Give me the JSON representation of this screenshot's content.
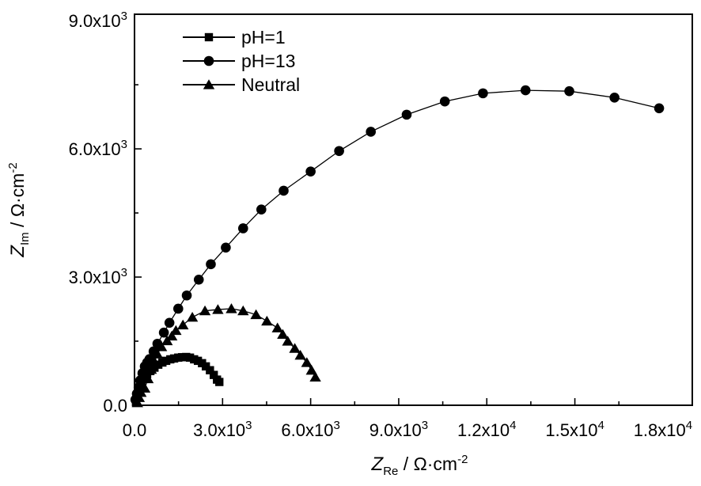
{
  "chart_data": {
    "type": "scatter",
    "title": "",
    "background": "#ffffff",
    "foreground": "#000000",
    "xlabel": {
      "var": "Z",
      "sub": "Re",
      "rest": " / Ω·cm",
      "sup": "-2"
    },
    "ylabel": {
      "var": "Z",
      "sub": "Im",
      "rest": " / Ω·cm",
      "sup": "-2"
    },
    "xlim": [
      0,
      19000
    ],
    "ylim": [
      0,
      9150
    ],
    "grid": false,
    "legend_position": "top-left",
    "x_ticks": {
      "minor_step": 1500,
      "major": [
        {
          "v": 0,
          "label": "0.0"
        },
        {
          "v": 3000,
          "label": "3.0x10^3"
        },
        {
          "v": 6000,
          "label": "6.0x10^3"
        },
        {
          "v": 9000,
          "label": "9.0x10^3"
        },
        {
          "v": 12000,
          "label": "1.2x10^4"
        },
        {
          "v": 15000,
          "label": "1.5x10^4"
        },
        {
          "v": 18000,
          "label": "1.8x10^4"
        }
      ]
    },
    "y_ticks": {
      "minor_step": 1500,
      "major": [
        {
          "v": 0,
          "label": "0.0"
        },
        {
          "v": 3000,
          "label": "3.0x10^3"
        },
        {
          "v": 6000,
          "label": "6.0x10^3"
        },
        {
          "v": 9000,
          "label": "9.0x10^3"
        }
      ]
    },
    "series": [
      {
        "name": "pH=1",
        "marker": "square",
        "color": "#000000",
        "points": [
          [
            50,
            70
          ],
          [
            110,
            220
          ],
          [
            160,
            360
          ],
          [
            240,
            510
          ],
          [
            320,
            620
          ],
          [
            430,
            730
          ],
          [
            540,
            800
          ],
          [
            680,
            880
          ],
          [
            810,
            950
          ],
          [
            950,
            1000
          ],
          [
            1080,
            1040
          ],
          [
            1220,
            1075
          ],
          [
            1350,
            1095
          ],
          [
            1490,
            1115
          ],
          [
            1620,
            1125
          ],
          [
            1760,
            1130
          ],
          [
            1890,
            1115
          ],
          [
            2030,
            1075
          ],
          [
            2160,
            1040
          ],
          [
            2300,
            985
          ],
          [
            2430,
            910
          ],
          [
            2570,
            820
          ],
          [
            2700,
            710
          ],
          [
            2810,
            600
          ],
          [
            2890,
            545
          ]
        ]
      },
      {
        "name": "pH=13",
        "marker": "circle",
        "color": "#000000",
        "points": [
          [
            30,
            130
          ],
          [
            80,
            270
          ],
          [
            140,
            420
          ],
          [
            190,
            580
          ],
          [
            270,
            750
          ],
          [
            350,
            910
          ],
          [
            430,
            1000
          ],
          [
            510,
            1080
          ],
          [
            650,
            1260
          ],
          [
            780,
            1440
          ],
          [
            1000,
            1700
          ],
          [
            1190,
            1930
          ],
          [
            1490,
            2260
          ],
          [
            1780,
            2570
          ],
          [
            2190,
            2940
          ],
          [
            2600,
            3300
          ],
          [
            3110,
            3690
          ],
          [
            3700,
            4140
          ],
          [
            4320,
            4580
          ],
          [
            5080,
            5020
          ],
          [
            6000,
            5470
          ],
          [
            6970,
            5950
          ],
          [
            8050,
            6400
          ],
          [
            9270,
            6800
          ],
          [
            10570,
            7110
          ],
          [
            11870,
            7300
          ],
          [
            13320,
            7370
          ],
          [
            14810,
            7350
          ],
          [
            16350,
            7200
          ],
          [
            17870,
            6950
          ]
        ]
      },
      {
        "name": "Neutral",
        "marker": "triangle",
        "color": "#000000",
        "points": [
          [
            100,
            60
          ],
          [
            160,
            180
          ],
          [
            220,
            300
          ],
          [
            350,
            400
          ],
          [
            460,
            620
          ],
          [
            570,
            840
          ],
          [
            680,
            1020
          ],
          [
            780,
            1200
          ],
          [
            920,
            1370
          ],
          [
            1110,
            1510
          ],
          [
            1270,
            1620
          ],
          [
            1410,
            1750
          ],
          [
            1650,
            1880
          ],
          [
            1970,
            2060
          ],
          [
            2400,
            2210
          ],
          [
            2840,
            2240
          ],
          [
            3300,
            2260
          ],
          [
            3700,
            2210
          ],
          [
            4140,
            2120
          ],
          [
            4510,
            1970
          ],
          [
            4870,
            1810
          ],
          [
            5050,
            1660
          ],
          [
            5220,
            1500
          ],
          [
            5460,
            1330
          ],
          [
            5650,
            1170
          ],
          [
            5870,
            1000
          ],
          [
            6030,
            820
          ],
          [
            6160,
            660
          ]
        ]
      }
    ]
  }
}
